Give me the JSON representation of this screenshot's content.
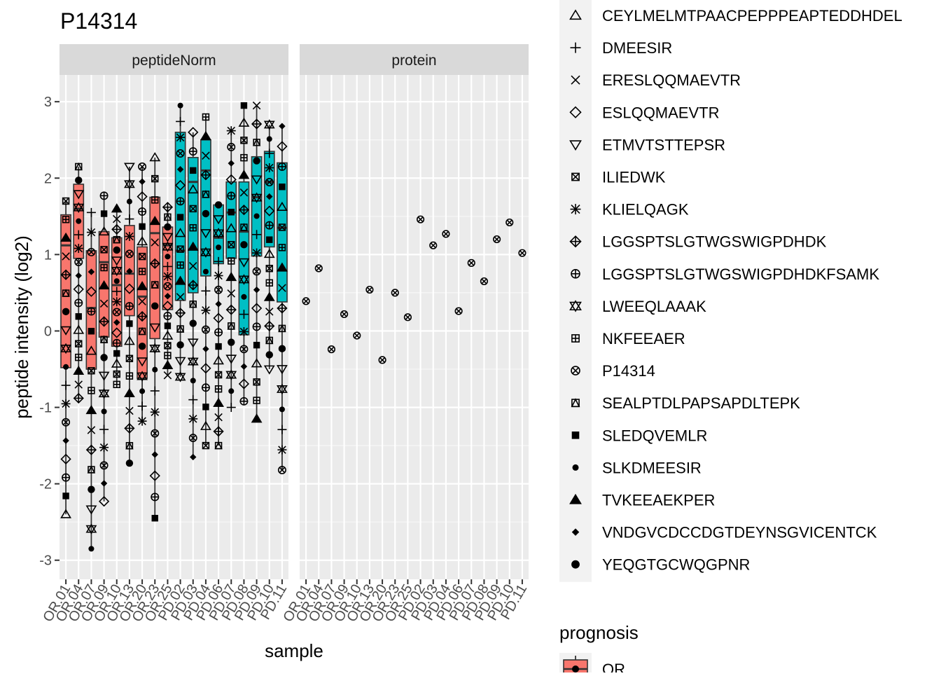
{
  "chart_data": {
    "type": "boxplot",
    "title": "P14314",
    "xlabel": "sample",
    "ylabel": "peptide intensity (log2)",
    "ylim": [
      -3.25,
      3.35
    ],
    "y_ticks": [
      3,
      2,
      1,
      0,
      -1,
      -2,
      -3
    ],
    "y_tick_labels": [
      "3",
      "2",
      "1",
      "0",
      "-1",
      "-2",
      "-3"
    ],
    "grid": true,
    "panels": [
      "peptideNorm",
      "protein"
    ],
    "samples": [
      "OR.01",
      "OR.04",
      "OR.07",
      "OR.09",
      "OR.10",
      "OR.13",
      "OR.20",
      "OR.23",
      "OR.25",
      "PD.02",
      "PD.03",
      "PD.04",
      "PD.06",
      "PD.07",
      "PD.08",
      "PD.09",
      "PD.10",
      "PD.11"
    ],
    "prognosis": [
      "OR",
      "OR",
      "OR",
      "OR",
      "OR",
      "OR",
      "OR",
      "OR",
      "OR",
      "PD",
      "PD",
      "PD",
      "PD",
      "PD",
      "PD",
      "PD",
      "PD",
      "PD"
    ],
    "fill_colors": {
      "OR": "#F8766D",
      "PD": "#00BFC4"
    },
    "box_stats": [
      {
        "sample": "OR.01",
        "q1": -0.48,
        "median": 1.12,
        "q3": 1.52,
        "lower": -2.4,
        "upper": 1.7
      },
      {
        "sample": "OR.04",
        "q1": 0.95,
        "median": 1.6,
        "q3": 1.92,
        "lower": -0.88,
        "upper": 2.15
      },
      {
        "sample": "OR.07",
        "q1": -0.5,
        "median": 0.3,
        "q3": 1.05,
        "lower": -2.85,
        "upper": 1.55
      },
      {
        "sample": "OR.09",
        "q1": -0.08,
        "median": 0.9,
        "q3": 1.3,
        "lower": -2.23,
        "upper": 1.77
      },
      {
        "sample": "OR.10",
        "q1": -0.2,
        "median": 0.6,
        "q3": 1.22,
        "lower": -0.7,
        "upper": 1.6
      },
      {
        "sample": "OR.13",
        "q1": 0.2,
        "median": 0.75,
        "q3": 1.38,
        "lower": -1.73,
        "upper": 2.15
      },
      {
        "sample": "OR.20",
        "q1": -0.62,
        "median": 0.45,
        "q3": 1.1,
        "lower": -1.18,
        "upper": 2.15
      },
      {
        "sample": "OR.23",
        "q1": -0.1,
        "median": 1.28,
        "q3": 1.75,
        "lower": -2.45,
        "upper": 2.27
      },
      {
        "sample": "OR.25",
        "q1": 0.28,
        "median": 1.12,
        "q3": 1.36,
        "lower": -0.58,
        "upper": 1.62
      },
      {
        "sample": "PD.02",
        "q1": 0.4,
        "median": 1.05,
        "q3": 2.6,
        "lower": -0.6,
        "upper": 2.95
      },
      {
        "sample": "PD.03",
        "q1": 0.5,
        "median": 1.95,
        "q3": 2.27,
        "lower": -1.65,
        "upper": 2.6
      },
      {
        "sample": "PD.04",
        "q1": 0.72,
        "median": 2.1,
        "q3": 2.5,
        "lower": -1.5,
        "upper": 2.8
      },
      {
        "sample": "PD.06",
        "q1": 0.88,
        "median": 1.22,
        "q3": 1.65,
        "lower": -1.5,
        "upper": 1.65
      },
      {
        "sample": "PD.07",
        "q1": 0.95,
        "median": 1.55,
        "q3": 1.95,
        "lower": -1.0,
        "upper": 2.62
      },
      {
        "sample": "PD.08",
        "q1": -0.05,
        "median": 1.3,
        "q3": 1.95,
        "lower": -0.92,
        "upper": 2.95
      },
      {
        "sample": "PD.09",
        "q1": 0.98,
        "median": 1.75,
        "q3": 2.28,
        "lower": -1.15,
        "upper": 2.95
      },
      {
        "sample": "PD.10",
        "q1": 1.1,
        "median": 1.95,
        "q3": 2.35,
        "lower": -0.5,
        "upper": 2.7
      },
      {
        "sample": "PD.11",
        "q1": 0.38,
        "median": 1.35,
        "q3": 2.2,
        "lower": -1.82,
        "upper": 2.68
      }
    ],
    "protein_values": [
      0.39,
      0.82,
      -0.24,
      0.22,
      -0.06,
      0.54,
      -0.38,
      0.5,
      0.18,
      1.46,
      1.12,
      1.27,
      0.26,
      0.89,
      0.65,
      1.2,
      1.42,
      1.02
    ],
    "legend_shape_title": "",
    "legend_shapes": [
      {
        "label": "CEYLMELMTPAACPEPPPEAPTEDDHDEL",
        "shape": "triangle-open"
      },
      {
        "label": "DMEESIR",
        "shape": "plus"
      },
      {
        "label": "ERESLQQMAEVTR",
        "shape": "cross"
      },
      {
        "label": "ESLQQMAEVTR",
        "shape": "diamond-open"
      },
      {
        "label": "ETMVTSTTEPSR",
        "shape": "triangle-down-open"
      },
      {
        "label": "ILIEDWK",
        "shape": "square-cross"
      },
      {
        "label": "KLIELQAGK",
        "shape": "asterisk"
      },
      {
        "label": "LGGSPTSLGTWGSWIGPDHDK",
        "shape": "diamond-plus"
      },
      {
        "label": "LGGSPTSLGTWGSWIGPDHDKFSAMK",
        "shape": "circle-plus"
      },
      {
        "label": "LWEEQLAAAK",
        "shape": "star-of-david"
      },
      {
        "label": "NKFEEAER",
        "shape": "square-plus"
      },
      {
        "label": "P14314",
        "shape": "circle-cross"
      },
      {
        "label": "SEALPTDLPAPSAPDLTEPK",
        "shape": "square-triangle"
      },
      {
        "label": "SLEDQVEMLR",
        "shape": "square-filled"
      },
      {
        "label": "SLKDMEESIR",
        "shape": "circle-small-filled"
      },
      {
        "label": "TVKEEAEKPER",
        "shape": "triangle-filled"
      },
      {
        "label": "VNDGVCDCCDGTDEYNSGVICENTCK",
        "shape": "diamond-small-filled"
      },
      {
        "label": "YEQGTGCWQGPNR",
        "shape": "circle-filled"
      }
    ],
    "legend_fill_title": "prognosis",
    "legend_fill": [
      {
        "label": "OR",
        "color": "#F8766D"
      }
    ]
  }
}
